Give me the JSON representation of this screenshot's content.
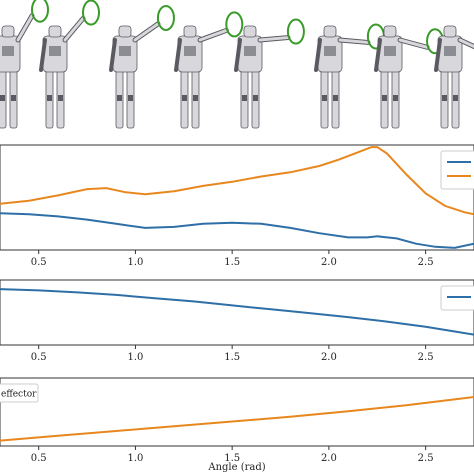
{
  "image_strip": {
    "description_icon": "humanoid-robot-icon",
    "frames": 9
  },
  "colors": {
    "blue": "#2f6fa7",
    "orange": "#e8871e",
    "ring": "#3a9a2a",
    "axis": "#333333",
    "robot_light": "#d8d8dc",
    "robot_dark": "#5a5a62"
  },
  "chart_data": [
    {
      "type": "line",
      "xlim": [
        0.3,
        2.75
      ],
      "xticks": [
        0.5,
        1.0,
        1.5,
        2.0,
        2.5
      ],
      "xtick_labels": [
        "0.5",
        "1.0",
        "1.5",
        "2.0",
        "2.5"
      ],
      "ylim": [
        0,
        1
      ],
      "legend_position": "top-right",
      "series": [
        {
          "color": "#2f6fa7",
          "x": [
            0.3,
            0.45,
            0.6,
            0.75,
            0.9,
            1.05,
            1.2,
            1.35,
            1.5,
            1.65,
            1.8,
            1.95,
            2.1,
            2.2,
            2.25,
            2.35,
            2.45,
            2.55,
            2.65,
            2.75
          ],
          "y": [
            0.35,
            0.34,
            0.32,
            0.29,
            0.25,
            0.21,
            0.22,
            0.25,
            0.26,
            0.25,
            0.21,
            0.16,
            0.12,
            0.12,
            0.13,
            0.11,
            0.06,
            0.03,
            0.02,
            0.06
          ]
        },
        {
          "color": "#e8871e",
          "x": [
            0.3,
            0.45,
            0.6,
            0.75,
            0.85,
            0.95,
            1.05,
            1.2,
            1.35,
            1.5,
            1.65,
            1.8,
            1.95,
            2.05,
            2.15,
            2.22,
            2.25,
            2.3,
            2.4,
            2.5,
            2.6,
            2.7,
            2.75
          ],
          "y": [
            0.44,
            0.47,
            0.52,
            0.58,
            0.59,
            0.55,
            0.53,
            0.56,
            0.61,
            0.65,
            0.7,
            0.74,
            0.8,
            0.86,
            0.93,
            0.98,
            0.98,
            0.92,
            0.72,
            0.54,
            0.42,
            0.36,
            0.34
          ]
        }
      ]
    },
    {
      "type": "line",
      "xlim": [
        0.3,
        2.75
      ],
      "xticks": [
        0.5,
        1.0,
        1.5,
        2.0,
        2.5
      ],
      "xtick_labels": [
        "0.5",
        "1.0",
        "1.5",
        "2.0",
        "2.5"
      ],
      "ylim": [
        0,
        1
      ],
      "legend_position": "top-right",
      "series": [
        {
          "color": "#2f6fa7",
          "x": [
            0.3,
            0.5,
            0.7,
            0.9,
            1.1,
            1.3,
            1.5,
            1.7,
            1.9,
            2.1,
            2.3,
            2.5,
            2.75
          ],
          "y": [
            0.86,
            0.84,
            0.81,
            0.77,
            0.72,
            0.67,
            0.61,
            0.55,
            0.49,
            0.43,
            0.36,
            0.28,
            0.16
          ]
        }
      ]
    },
    {
      "type": "line",
      "xlim": [
        0.3,
        2.75
      ],
      "xticks": [
        0.5,
        1.0,
        1.5,
        2.0,
        2.5
      ],
      "xtick_labels": [
        "0.5",
        "1.0",
        "1.5",
        "2.0",
        "2.5"
      ],
      "xlabel": "Angle (rad)",
      "ylim": [
        0,
        1
      ],
      "legend_position": "top-left",
      "legend_label": "effector",
      "series": [
        {
          "color": "#e8871e",
          "x": [
            0.3,
            0.6,
            0.9,
            1.2,
            1.5,
            1.8,
            2.1,
            2.4,
            2.75
          ],
          "y": [
            0.08,
            0.15,
            0.22,
            0.29,
            0.36,
            0.43,
            0.51,
            0.6,
            0.72
          ]
        }
      ]
    }
  ]
}
